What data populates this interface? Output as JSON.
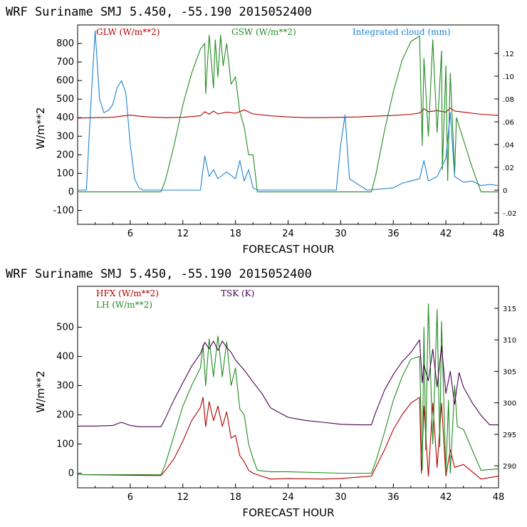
{
  "colors": {
    "glw": "#b40000",
    "gsw": "#228b22",
    "cloud": "#1e82d2",
    "hfx": "#b40000",
    "lh": "#228b22",
    "tsk": "#4b0050"
  },
  "chart_data": [
    {
      "type": "line",
      "title": "WRF   Suriname SMJ   5.450, -55.190  2015052400",
      "xlabel": "FORECAST HOUR",
      "ylabel": "W/m**2",
      "xlim": [
        0,
        48
      ],
      "ylim": [
        -175,
        900
      ],
      "y2lim": [
        -0.03,
        0.145
      ],
      "xticks": [
        "6",
        "12",
        "18",
        "24",
        "30",
        "36",
        "42",
        "48"
      ],
      "yticks": [
        "-100",
        "0",
        "100",
        "200",
        "300",
        "400",
        "500",
        "600",
        "700",
        "800"
      ],
      "y2ticks": [
        "-.02",
        "0",
        ".02",
        ".04",
        ".06",
        ".08",
        ".10",
        ".12"
      ],
      "legend": [
        "GLW (W/m**2)",
        "GSW (W/m**2)",
        "Integrated cloud (mm)"
      ],
      "series": [
        {
          "name": "GLW (W/m**2)",
          "axis": "left",
          "x": [
            0,
            2,
            4,
            5,
            6,
            7,
            8,
            10,
            12,
            14,
            14.5,
            15,
            15.5,
            16,
            17,
            18,
            19,
            20,
            22,
            24,
            26,
            28,
            30,
            32,
            34,
            36,
            38,
            39,
            39.5,
            40,
            41,
            42,
            42.5,
            43,
            44,
            46,
            48
          ],
          "values": [
            398,
            400,
            402,
            408,
            414,
            408,
            404,
            400,
            402,
            410,
            432,
            418,
            436,
            420,
            430,
            424,
            442,
            420,
            410,
            404,
            400,
            400,
            402,
            404,
            408,
            412,
            418,
            425,
            448,
            432,
            438,
            430,
            452,
            436,
            430,
            418,
            412
          ]
        },
        {
          "name": "GSW (W/m**2)",
          "axis": "left",
          "x": [
            0,
            9.5,
            10,
            11,
            12,
            13,
            14,
            14.5,
            14.6,
            15,
            15.5,
            15.7,
            16,
            16.3,
            16.6,
            17,
            17.5,
            18,
            18.5,
            19,
            19.5,
            20,
            20.5,
            33.5,
            34,
            35,
            36,
            37,
            38,
            39,
            39.3,
            39.5,
            40,
            40.5,
            41,
            41.5,
            41.6,
            42,
            42.2,
            42.5,
            43,
            43.2,
            44,
            45,
            46,
            48
          ],
          "values": [
            0,
            0,
            60,
            250,
            470,
            640,
            770,
            800,
            530,
            845,
            560,
            820,
            620,
            845,
            680,
            800,
            580,
            620,
            430,
            350,
            200,
            200,
            0,
            0,
            90,
            330,
            540,
            710,
            810,
            840,
            250,
            720,
            300,
            820,
            320,
            760,
            120,
            680,
            60,
            640,
            100,
            400,
            280,
            130,
            0,
            0
          ]
        },
        {
          "name": "Integrated cloud (mm)",
          "axis": "right",
          "x": [
            0,
            1,
            1.5,
            2,
            2.5,
            3,
            3.5,
            4,
            4.5,
            5,
            5.5,
            6,
            6.5,
            7,
            7.5,
            14,
            14.5,
            15,
            15.5,
            16,
            17,
            18,
            18.5,
            19,
            19.5,
            20,
            20.5,
            29.5,
            30,
            30.5,
            31,
            33,
            36,
            37,
            38,
            39,
            39.5,
            40,
            41,
            42,
            42.5,
            43,
            44,
            45,
            46,
            47,
            48
          ],
          "values": [
            0,
            0,
            0.075,
            0.14,
            0.08,
            0.068,
            0.07,
            0.075,
            0.09,
            0.096,
            0.085,
            0.04,
            0.01,
            0.002,
            0,
            0,
            0.03,
            0.012,
            0.018,
            0.01,
            0.016,
            0.01,
            0.026,
            0.008,
            0.018,
            0.002,
            0,
            0,
            0.04,
            0.066,
            0.01,
            0,
            0.002,
            0.006,
            0.008,
            0.01,
            0.026,
            0.008,
            0.012,
            0.028,
            0.068,
            0.012,
            0.007,
            0.008,
            0.004,
            0.005,
            0.004
          ]
        }
      ]
    },
    {
      "type": "line",
      "title": "WRF   Suriname SMJ   5.450, -55.190  2015052400",
      "xlabel": "FORECAST HOUR",
      "ylabel": "W/m**2",
      "xlim": [
        0,
        48
      ],
      "ylim": [
        -50,
        640
      ],
      "y2lim": [
        286.5,
        318.5
      ],
      "xticks": [
        "6",
        "12",
        "18",
        "24",
        "30",
        "36",
        "42",
        "48"
      ],
      "yticks": [
        "0",
        "100",
        "200",
        "300",
        "400",
        "500"
      ],
      "y2ticks": [
        "290",
        "295",
        "300",
        "305",
        "310",
        "315"
      ],
      "legend": [
        "HFX (W/m**2)",
        "LH (W/m**2)",
        "TSK (K)"
      ],
      "series": [
        {
          "name": "HFX (W/m**2)",
          "axis": "left",
          "x": [
            0,
            9.5,
            10,
            11,
            12,
            13,
            14,
            14.3,
            14.6,
            15,
            15.5,
            16,
            16.5,
            17,
            17.5,
            18,
            18.5,
            19,
            19.5,
            20,
            21,
            22,
            24,
            28,
            30,
            33.5,
            34,
            35,
            36,
            37,
            38,
            39,
            39.2,
            39.5,
            40,
            40.5,
            41,
            41.5,
            42,
            42.5,
            43,
            44,
            46,
            48
          ],
          "values": [
            -5,
            -8,
            10,
            50,
            110,
            180,
            225,
            260,
            160,
            245,
            180,
            230,
            160,
            210,
            120,
            130,
            60,
            40,
            10,
            0,
            -10,
            -20,
            -18,
            -20,
            -18,
            -10,
            20,
            80,
            150,
            200,
            240,
            260,
            0,
            230,
            -10,
            240,
            20,
            240,
            -10,
            80,
            20,
            30,
            -20,
            -10
          ]
        },
        {
          "name": "LH (W/m**2)",
          "axis": "left",
          "x": [
            0,
            9.5,
            10,
            11,
            12,
            13,
            14,
            14.3,
            14.6,
            15,
            15.5,
            16,
            16.5,
            17,
            17.5,
            18,
            18.5,
            19,
            19.5,
            20,
            20.5,
            22,
            24,
            30,
            33.5,
            34,
            35,
            36,
            37,
            38,
            39,
            39.3,
            39.5,
            39.7,
            40,
            40.5,
            41,
            41.3,
            41.5,
            42,
            42.3,
            42.5,
            43,
            43.3,
            44,
            45,
            46,
            48
          ],
          "values": [
            -5,
            -5,
            30,
            130,
            230,
            300,
            360,
            440,
            300,
            460,
            330,
            470,
            330,
            450,
            300,
            360,
            220,
            200,
            100,
            50,
            10,
            5,
            5,
            0,
            0,
            40,
            140,
            250,
            330,
            390,
            400,
            10,
            500,
            80,
            580,
            100,
            560,
            90,
            520,
            0,
            250,
            0,
            300,
            160,
            150,
            80,
            10,
            15
          ]
        },
        {
          "name": "TSK (K)",
          "axis": "right",
          "x": [
            0,
            2,
            4,
            5,
            6,
            7,
            8,
            9.5,
            10,
            11,
            12,
            13,
            14,
            14.5,
            15,
            15.5,
            16,
            16.5,
            17,
            17.5,
            18,
            19,
            20,
            21,
            22,
            24,
            26,
            28,
            30,
            32,
            33.5,
            34,
            35,
            36,
            37,
            38,
            39,
            39.3,
            39.5,
            40,
            40.5,
            41,
            41.5,
            42,
            42.5,
            43,
            43.5,
            44,
            45,
            46,
            47,
            48
          ],
          "values": [
            296.3,
            296.3,
            296.4,
            296.9,
            296.4,
            296.2,
            296.2,
            296.2,
            297.5,
            300.5,
            303.2,
            305.8,
            307.8,
            309.6,
            308.6,
            309.8,
            308.3,
            309.8,
            308.8,
            308.0,
            306.8,
            305.2,
            303.3,
            301.5,
            299.2,
            297.7,
            297.2,
            296.9,
            296.6,
            296.5,
            296.5,
            298.5,
            302.0,
            304.5,
            306.5,
            308.0,
            310.0,
            303.2,
            306.0,
            303.5,
            308.5,
            302.5,
            309.0,
            301.5,
            305.0,
            299.8,
            304.8,
            302.5,
            300.0,
            298.0,
            296.5,
            296.5
          ]
        }
      ]
    }
  ]
}
